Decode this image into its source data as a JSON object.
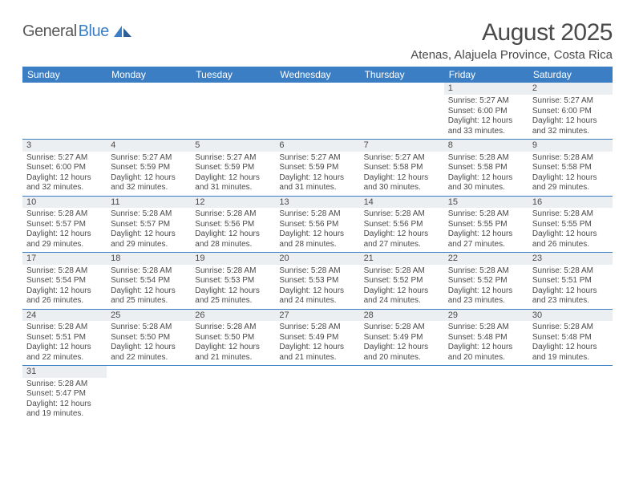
{
  "brand": {
    "name_part1": "General",
    "name_part2": "Blue"
  },
  "title": "August 2025",
  "location": "Atenas, Alajuela Province, Costa Rica",
  "colors": {
    "header_bg": "#3b7ec4",
    "header_text": "#ffffff",
    "daynum_bg": "#eceff1",
    "row_border": "#3b7ec4",
    "text": "#4a4a4a",
    "background": "#ffffff"
  },
  "fonts": {
    "title_size": 30,
    "location_size": 15,
    "dayhead_size": 12,
    "daynum_size": 11,
    "detail_size": 10
  },
  "weekdays": [
    "Sunday",
    "Monday",
    "Tuesday",
    "Wednesday",
    "Thursday",
    "Friday",
    "Saturday"
  ],
  "weeks": [
    [
      null,
      null,
      null,
      null,
      null,
      {
        "n": "1",
        "sr": "5:27 AM",
        "ss": "6:00 PM",
        "dl": "12 hours and 33 minutes."
      },
      {
        "n": "2",
        "sr": "5:27 AM",
        "ss": "6:00 PM",
        "dl": "12 hours and 32 minutes."
      }
    ],
    [
      {
        "n": "3",
        "sr": "5:27 AM",
        "ss": "6:00 PM",
        "dl": "12 hours and 32 minutes."
      },
      {
        "n": "4",
        "sr": "5:27 AM",
        "ss": "5:59 PM",
        "dl": "12 hours and 32 minutes."
      },
      {
        "n": "5",
        "sr": "5:27 AM",
        "ss": "5:59 PM",
        "dl": "12 hours and 31 minutes."
      },
      {
        "n": "6",
        "sr": "5:27 AM",
        "ss": "5:59 PM",
        "dl": "12 hours and 31 minutes."
      },
      {
        "n": "7",
        "sr": "5:27 AM",
        "ss": "5:58 PM",
        "dl": "12 hours and 30 minutes."
      },
      {
        "n": "8",
        "sr": "5:28 AM",
        "ss": "5:58 PM",
        "dl": "12 hours and 30 minutes."
      },
      {
        "n": "9",
        "sr": "5:28 AM",
        "ss": "5:58 PM",
        "dl": "12 hours and 29 minutes."
      }
    ],
    [
      {
        "n": "10",
        "sr": "5:28 AM",
        "ss": "5:57 PM",
        "dl": "12 hours and 29 minutes."
      },
      {
        "n": "11",
        "sr": "5:28 AM",
        "ss": "5:57 PM",
        "dl": "12 hours and 29 minutes."
      },
      {
        "n": "12",
        "sr": "5:28 AM",
        "ss": "5:56 PM",
        "dl": "12 hours and 28 minutes."
      },
      {
        "n": "13",
        "sr": "5:28 AM",
        "ss": "5:56 PM",
        "dl": "12 hours and 28 minutes."
      },
      {
        "n": "14",
        "sr": "5:28 AM",
        "ss": "5:56 PM",
        "dl": "12 hours and 27 minutes."
      },
      {
        "n": "15",
        "sr": "5:28 AM",
        "ss": "5:55 PM",
        "dl": "12 hours and 27 minutes."
      },
      {
        "n": "16",
        "sr": "5:28 AM",
        "ss": "5:55 PM",
        "dl": "12 hours and 26 minutes."
      }
    ],
    [
      {
        "n": "17",
        "sr": "5:28 AM",
        "ss": "5:54 PM",
        "dl": "12 hours and 26 minutes."
      },
      {
        "n": "18",
        "sr": "5:28 AM",
        "ss": "5:54 PM",
        "dl": "12 hours and 25 minutes."
      },
      {
        "n": "19",
        "sr": "5:28 AM",
        "ss": "5:53 PM",
        "dl": "12 hours and 25 minutes."
      },
      {
        "n": "20",
        "sr": "5:28 AM",
        "ss": "5:53 PM",
        "dl": "12 hours and 24 minutes."
      },
      {
        "n": "21",
        "sr": "5:28 AM",
        "ss": "5:52 PM",
        "dl": "12 hours and 24 minutes."
      },
      {
        "n": "22",
        "sr": "5:28 AM",
        "ss": "5:52 PM",
        "dl": "12 hours and 23 minutes."
      },
      {
        "n": "23",
        "sr": "5:28 AM",
        "ss": "5:51 PM",
        "dl": "12 hours and 23 minutes."
      }
    ],
    [
      {
        "n": "24",
        "sr": "5:28 AM",
        "ss": "5:51 PM",
        "dl": "12 hours and 22 minutes."
      },
      {
        "n": "25",
        "sr": "5:28 AM",
        "ss": "5:50 PM",
        "dl": "12 hours and 22 minutes."
      },
      {
        "n": "26",
        "sr": "5:28 AM",
        "ss": "5:50 PM",
        "dl": "12 hours and 21 minutes."
      },
      {
        "n": "27",
        "sr": "5:28 AM",
        "ss": "5:49 PM",
        "dl": "12 hours and 21 minutes."
      },
      {
        "n": "28",
        "sr": "5:28 AM",
        "ss": "5:49 PM",
        "dl": "12 hours and 20 minutes."
      },
      {
        "n": "29",
        "sr": "5:28 AM",
        "ss": "5:48 PM",
        "dl": "12 hours and 20 minutes."
      },
      {
        "n": "30",
        "sr": "5:28 AM",
        "ss": "5:48 PM",
        "dl": "12 hours and 19 minutes."
      }
    ],
    [
      {
        "n": "31",
        "sr": "5:28 AM",
        "ss": "5:47 PM",
        "dl": "12 hours and 19 minutes."
      },
      null,
      null,
      null,
      null,
      null,
      null
    ]
  ],
  "labels": {
    "sunrise": "Sunrise:",
    "sunset": "Sunset:",
    "daylight": "Daylight:"
  }
}
